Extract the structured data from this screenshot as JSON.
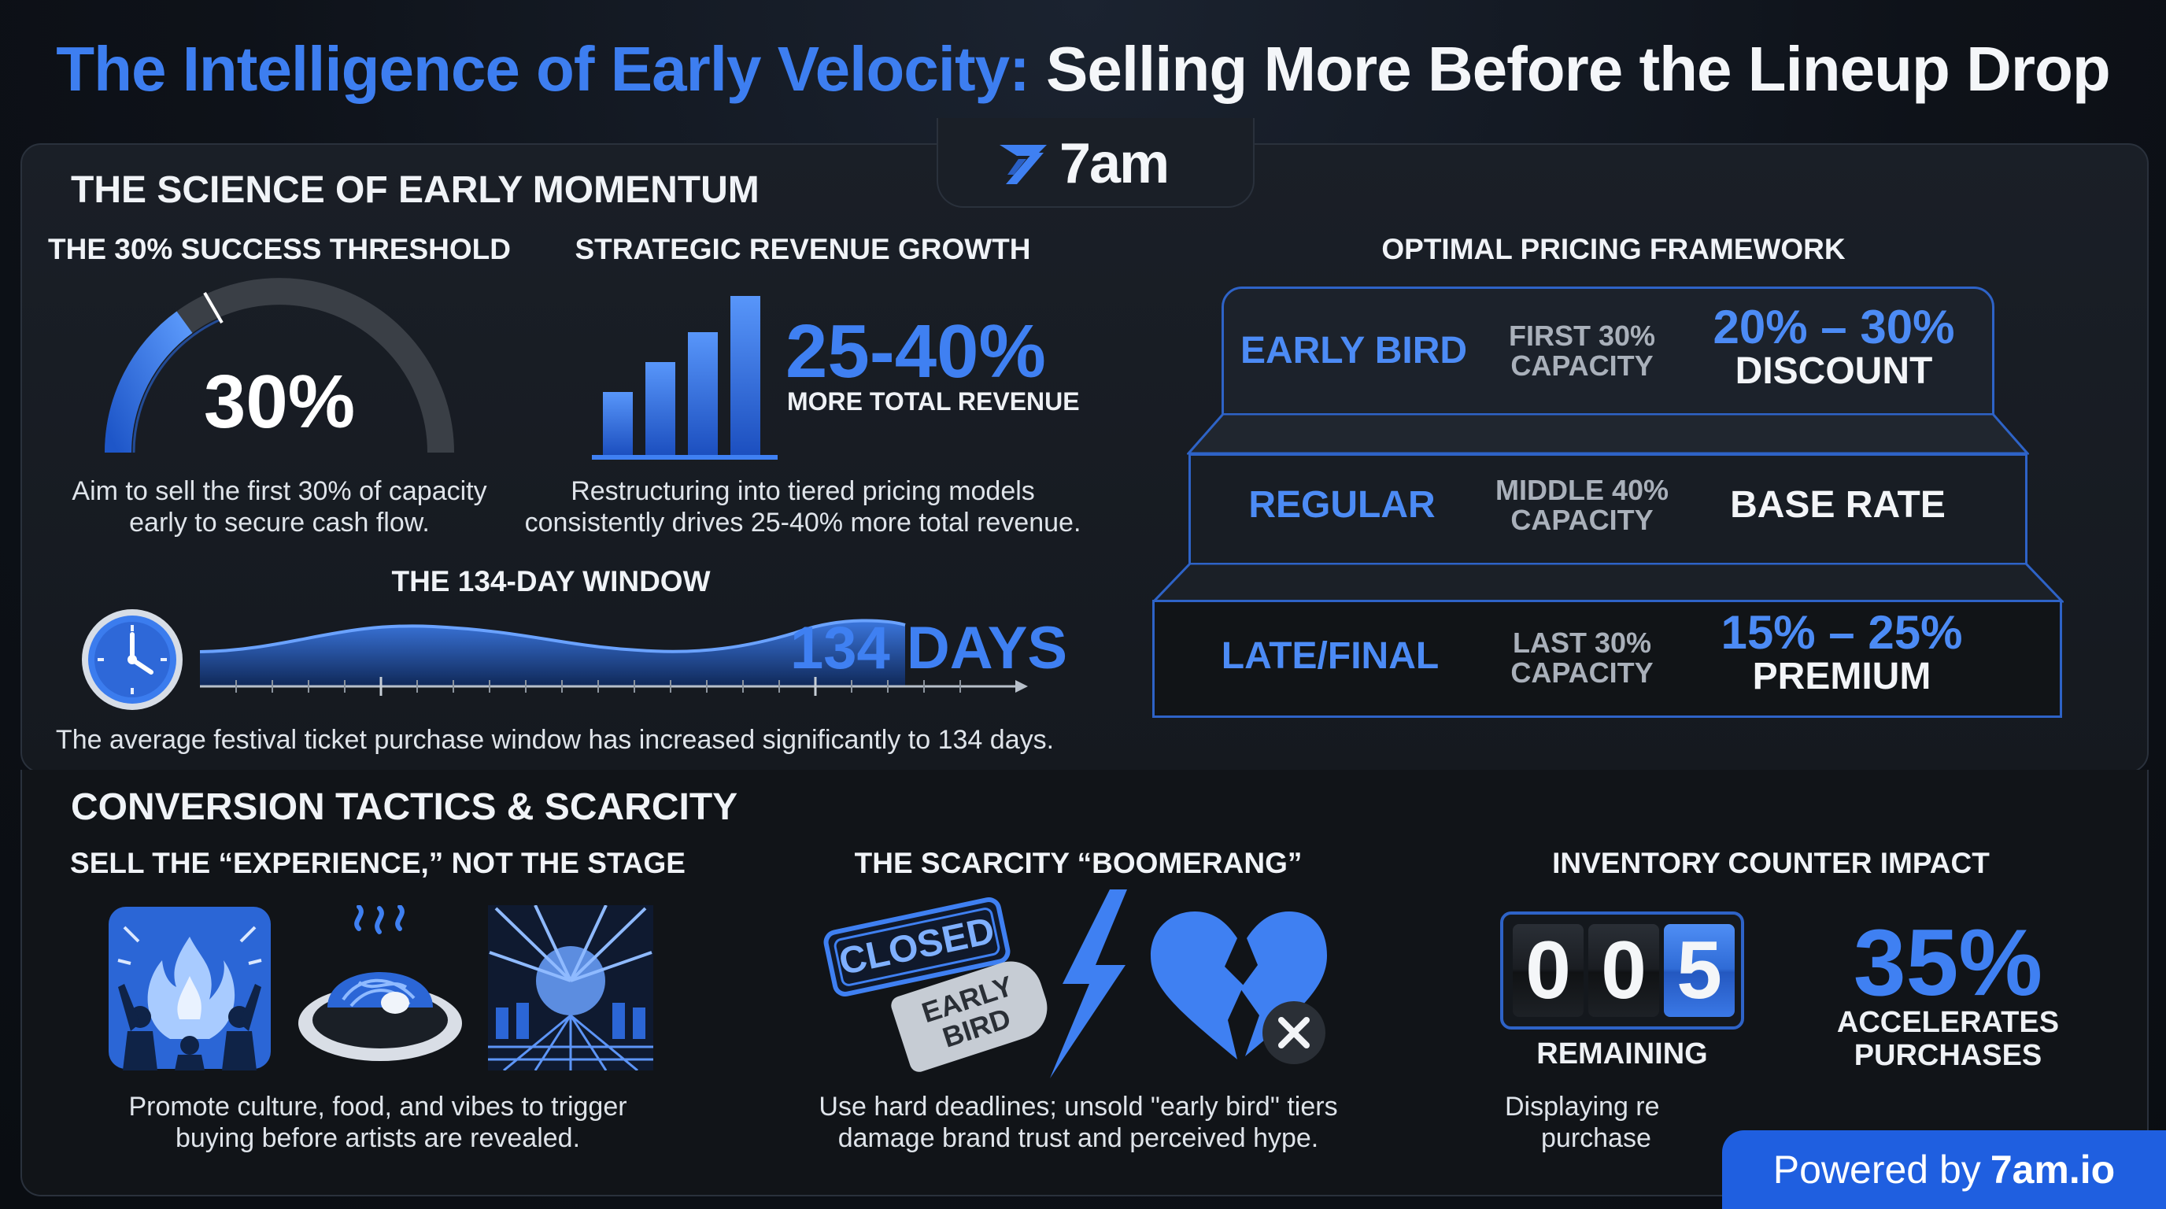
{
  "title": {
    "part1": "The Intelligence of Early Velocity:",
    "part2": "Selling More Before the Lineup Drop"
  },
  "brand": {
    "logo_text": "7am"
  },
  "science": {
    "heading": "THE SCIENCE OF EARLY MOMENTUM",
    "threshold": {
      "title": "THE 30% SUCCESS THRESHOLD",
      "value": "30%",
      "gauge_fraction": 0.3,
      "caption_line1": "Aim to sell the first 30% of capacity",
      "caption_line2": "early to secure cash flow."
    },
    "revenue": {
      "title": "STRATEGIC REVENUE GROWTH",
      "value": "25-40%",
      "value_label": "MORE TOTAL REVENUE",
      "caption_line1": "Restructuring into tiered pricing models",
      "caption_line2": "consistently drives 25-40% more total revenue."
    },
    "window": {
      "title": "THE 134-DAY WINDOW",
      "value": "134 DAYS",
      "caption": "The average festival ticket purchase window has increased significantly to 134 days."
    }
  },
  "pricing": {
    "title": "OPTIMAL PRICING FRAMEWORK",
    "tiers": [
      {
        "name": "EARLY BIRD",
        "cap1": "FIRST 30%",
        "cap2": "CAPACITY",
        "val1": "20% – 30%",
        "val2": "DISCOUNT"
      },
      {
        "name": "REGULAR",
        "cap1": "MIDDLE 40%",
        "cap2": "CAPACITY",
        "val1": "BASE RATE"
      },
      {
        "name": "LATE/FINAL",
        "cap1": "LAST 30%",
        "cap2": "CAPACITY",
        "val1": "15% – 25%",
        "val2": "PREMIUM"
      }
    ]
  },
  "conversion": {
    "heading": "CONVERSION TACTICS & SCARCITY",
    "experience": {
      "title": "SELL THE “EXPERIENCE,” NOT THE STAGE",
      "caption_line1": "Promote culture, food, and vibes to trigger",
      "caption_line2": "buying before artists are revealed."
    },
    "boomerang": {
      "title": "THE SCARCITY “BOOMERANG”",
      "stamp": "CLOSED",
      "tag_line1": "EARLY",
      "tag_line2": "BIRD",
      "caption_line1": "Use hard deadlines; unsold \"early bird\" tiers",
      "caption_line2": "damage brand trust and perceived hype."
    },
    "inventory": {
      "title": "INVENTORY COUNTER IMPACT",
      "digits": [
        "0",
        "0",
        "5"
      ],
      "remaining_label": "REMAINING",
      "stat": "35%",
      "stat_label1": "ACCELERATES",
      "stat_label2": "PURCHASES",
      "caption_line1": "Displaying re",
      "caption_line2": "purchase"
    }
  },
  "footer": {
    "powered_prefix": "Powered by",
    "powered_brand": "7am.io"
  },
  "colors": {
    "accent": "#3f80f2",
    "badge": "#1f5fe0",
    "bg": "#0e1219"
  }
}
